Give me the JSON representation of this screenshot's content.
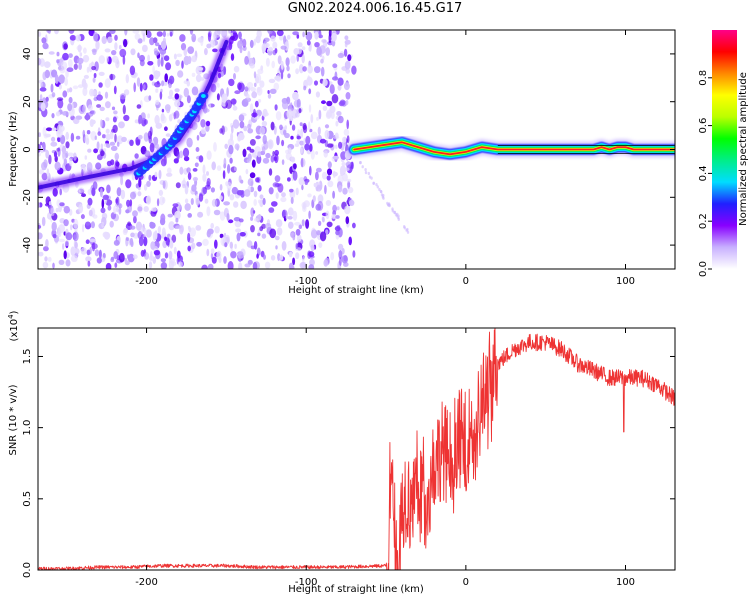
{
  "title": "GN02.2024.006.16.45.G17",
  "chart_data": [
    {
      "type": "heatmap",
      "xlabel": "Height of straight line (km)",
      "ylabel": "Frequency (Hz)",
      "xlim": [
        -268,
        131
      ],
      "ylim": [
        -50,
        50
      ],
      "xticks": [
        -200,
        -100,
        0,
        100
      ],
      "yticks": [
        -40,
        -20,
        0,
        20,
        40
      ],
      "noise_region_x": [
        -268,
        -70
      ],
      "chirp_track": [
        {
          "x": -268,
          "y": -16
        },
        {
          "x": -240,
          "y": -12
        },
        {
          "x": -210,
          "y": -8
        },
        {
          "x": -195,
          "y": -4
        },
        {
          "x": -180,
          "y": 4
        },
        {
          "x": -170,
          "y": 14
        },
        {
          "x": -160,
          "y": 28
        },
        {
          "x": -150,
          "y": 45
        }
      ],
      "strong_track": [
        {
          "x": -205,
          "y": -10
        },
        {
          "x": -195,
          "y": -4
        },
        {
          "x": -185,
          "y": 2
        },
        {
          "x": -178,
          "y": 9
        },
        {
          "x": -170,
          "y": 16
        },
        {
          "x": -163,
          "y": 24
        }
      ],
      "carrier_track": [
        {
          "x": -70,
          "y": 0
        },
        {
          "x": -60,
          "y": 1
        },
        {
          "x": -50,
          "y": 2
        },
        {
          "x": -40,
          "y": 3
        },
        {
          "x": -30,
          "y": 1
        },
        {
          "x": -20,
          "y": -1
        },
        {
          "x": -10,
          "y": -2
        },
        {
          "x": 0,
          "y": -1
        },
        {
          "x": 10,
          "y": 1
        },
        {
          "x": 20,
          "y": 0
        },
        {
          "x": 80,
          "y": 0
        },
        {
          "x": 85,
          "y": 1
        },
        {
          "x": 90,
          "y": 0
        },
        {
          "x": 95,
          "y": 1
        },
        {
          "x": 100,
          "y": 1
        },
        {
          "x": 105,
          "y": 0
        },
        {
          "x": 131,
          "y": 0
        }
      ],
      "colorbar": {
        "label": "Normalized spectral amplitude",
        "ticks": [
          "0.0",
          "0.2",
          "0.4",
          "0.6",
          "0.8"
        ],
        "tick_values": [
          0.0,
          0.2,
          0.4,
          0.6,
          0.8
        ],
        "range": [
          0,
          1
        ],
        "colors": [
          "#ffffff",
          "#c8b0ff",
          "#8800ff",
          "#2020ff",
          "#00ddff",
          "#00ee88",
          "#00ff00",
          "#bbff00",
          "#ffff00",
          "#ff8800",
          "#ff0000",
          "#ff0088"
        ]
      }
    },
    {
      "type": "line",
      "xlabel": "Height of straight line (km)",
      "ylabel": "SNR (10 * v/v)",
      "y_multiplier": "(x10",
      "y_multiplier_exp": "4",
      "y_multiplier_close": ")",
      "xlim": [
        -268,
        131
      ],
      "ylim": [
        0,
        1.7
      ],
      "xticks": [
        -200,
        -100,
        0,
        100
      ],
      "yticks": [
        0.0,
        0.5,
        1.0,
        1.5
      ],
      "ytick_labels": [
        "0.0",
        "0.5",
        "1.0",
        "1.5"
      ],
      "color": "#ee3333",
      "series": [
        {
          "x": [
            -268,
            -250,
            -230,
            -210,
            -190,
            -170,
            -150,
            -130,
            -110,
            -90,
            -80,
            -50,
            -48,
            -47,
            -45,
            -44,
            -42,
            -40,
            -38,
            -35,
            -30,
            -25,
            -20,
            -15,
            -10,
            -5,
            0,
            5,
            10,
            15,
            20,
            30,
            40,
            50,
            60,
            70,
            80,
            90,
            100,
            110,
            120,
            131
          ],
          "y": [
            0.01,
            0.01,
            0.02,
            0.02,
            0.03,
            0.03,
            0.03,
            0.02,
            0.02,
            0.02,
            0.02,
            0.03,
            0.35,
            0.8,
            0.55,
            0.2,
            0.05,
            0.45,
            0.55,
            0.5,
            0.65,
            0.6,
            0.75,
            0.85,
            0.8,
            0.95,
            0.9,
            1.05,
            1.2,
            1.35,
            1.45,
            1.55,
            1.6,
            1.6,
            1.55,
            1.45,
            1.4,
            1.35,
            1.35,
            1.35,
            1.3,
            1.2
          ]
        }
      ]
    }
  ]
}
